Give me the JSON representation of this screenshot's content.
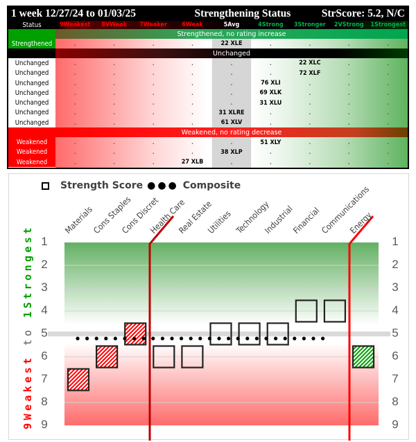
{
  "table": {
    "title_left": "1 week 12/27/24 to 01/03/25",
    "title_center": "Strengthening Status",
    "title_right": "StrScore: 5.2, N/C",
    "status_header": "Status",
    "columns": [
      "9Weakest",
      "8VWeak",
      "7Weaker",
      "6Weak",
      "5Avg",
      "4Strong",
      "3Stronger",
      "2VStrong",
      "1Strongest"
    ],
    "column_colors": [
      "#ff0000",
      "#ff0000",
      "#ff0000",
      "#ff0000",
      "#ffffff",
      "#00b050",
      "#00b050",
      "#00b050",
      "#00b050"
    ],
    "banners": {
      "strengthened": "Strengthened, no rating increase",
      "unchanged": "Unchanged",
      "weakened": "Weakened, no rating decrease"
    },
    "empty_mark": ".",
    "groups": [
      {
        "key": "strengthened",
        "rows": [
          {
            "status": "Strengthened",
            "col": 4,
            "entry": "22 XLE"
          }
        ]
      },
      {
        "key": "unchanged",
        "rows": [
          {
            "status": "Unchanged",
            "col": 6,
            "entry": "22 XLC"
          },
          {
            "status": "Unchanged",
            "col": 6,
            "entry": "72 XLF"
          },
          {
            "status": "Unchanged",
            "col": 5,
            "entry": "76 XLI"
          },
          {
            "status": "Unchanged",
            "col": 5,
            "entry": "69 XLK"
          },
          {
            "status": "Unchanged",
            "col": 5,
            "entry": "31 XLU"
          },
          {
            "status": "Unchanged",
            "col": 4,
            "entry": "31 XLRE"
          },
          {
            "status": "Unchanged",
            "col": 4,
            "entry": "61 XLV"
          }
        ]
      },
      {
        "key": "weakened",
        "rows": [
          {
            "status": "Weakened",
            "col": 5,
            "entry": "51 XLY"
          },
          {
            "status": "Weakened",
            "col": 4,
            "entry": "38 XLP"
          },
          {
            "status": "Weakened",
            "col": 3,
            "entry": "27 XLB"
          }
        ]
      }
    ]
  },
  "chart_data": {
    "type": "scatter",
    "legend": {
      "strength_score": "Strength Score",
      "composite": "Composite",
      "placement": "top-left"
    },
    "categories": [
      "Materials",
      "Cons Staples",
      "Cons Discret",
      "Health Care",
      "Real Estate",
      "Utilities",
      "Technology",
      "Industrial",
      "Financial",
      "Communications",
      "Energy"
    ],
    "series": [
      {
        "name": "Strength Score",
        "values": [
          7,
          6,
          5,
          6,
          6,
          5,
          5,
          5,
          4,
          4,
          6
        ],
        "status": [
          "weakened",
          "weakened",
          "weakened",
          "unchanged",
          "unchanged",
          "unchanged",
          "unchanged",
          "unchanged",
          "unchanged",
          "unchanged",
          "strengthened"
        ]
      },
      {
        "name": "Composite",
        "value": 5.2
      }
    ],
    "ylim": [
      1,
      9
    ],
    "y_reversed": true,
    "yticks": [
      "1",
      "2",
      "3",
      "4",
      "5",
      "6",
      "7",
      "8",
      "9"
    ],
    "ylabel": {
      "part1": "9Weakest",
      "part2": " to ",
      "part3": "1Strongest"
    },
    "dividers_after": [
      "Cons Discret",
      "Communications"
    ],
    "colors": {
      "strong": "#00a000",
      "weak": "#ff0000",
      "divider_left": "#c00000",
      "divider_right": "#ff0000"
    },
    "grid": true
  }
}
